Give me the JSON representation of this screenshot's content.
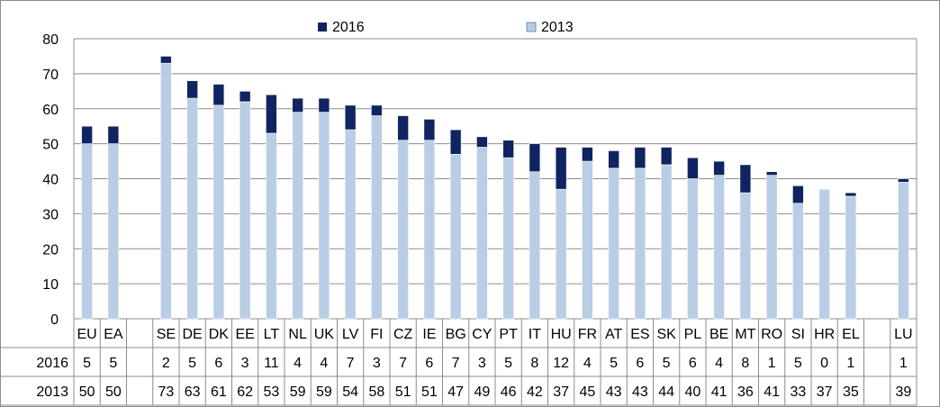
{
  "chart_data": {
    "type": "bar",
    "stacked": true,
    "ylim": [
      0,
      80
    ],
    "yticks": [
      0,
      10,
      20,
      30,
      40,
      50,
      60,
      70,
      80
    ],
    "grid": true,
    "legend_position": "top",
    "categories": [
      "EU",
      "EA",
      "",
      "SE",
      "DE",
      "DK",
      "EE",
      "LT",
      "NL",
      "UK",
      "LV",
      "FI",
      "CZ",
      "IE",
      "BG",
      "CY",
      "PT",
      "IT",
      "HU",
      "FR",
      "AT",
      "ES",
      "SK",
      "PL",
      "BE",
      "MT",
      "RO",
      "SI",
      "HR",
      "EL",
      "",
      "LU"
    ],
    "series": [
      {
        "name": "2013",
        "color": "#b9cde5",
        "values": [
          50,
          50,
          null,
          73,
          63,
          61,
          62,
          53,
          59,
          59,
          54,
          58,
          51,
          51,
          47,
          49,
          46,
          42,
          37,
          45,
          43,
          43,
          44,
          40,
          41,
          36,
          41,
          33,
          37,
          35,
          null,
          39
        ]
      },
      {
        "name": "2016",
        "color": "#0f2460",
        "values": [
          5,
          5,
          null,
          2,
          5,
          6,
          3,
          11,
          4,
          4,
          7,
          3,
          7,
          6,
          7,
          3,
          5,
          8,
          12,
          4,
          5,
          6,
          5,
          6,
          4,
          8,
          1,
          5,
          0,
          1,
          null,
          1
        ]
      }
    ],
    "table_rows": [
      {
        "label": "2016",
        "values": [
          "5",
          "5",
          "",
          "2",
          "5",
          "6",
          "3",
          "11",
          "4",
          "4",
          "7",
          "3",
          "7",
          "6",
          "7",
          "3",
          "5",
          "8",
          "12",
          "4",
          "5",
          "6",
          "5",
          "6",
          "4",
          "8",
          "1",
          "5",
          "0",
          "1",
          "",
          "1"
        ]
      },
      {
        "label": "2013",
        "values": [
          "50",
          "50",
          "",
          "73",
          "63",
          "61",
          "62",
          "53",
          "59",
          "59",
          "54",
          "58",
          "51",
          "51",
          "47",
          "49",
          "46",
          "42",
          "37",
          "45",
          "43",
          "43",
          "44",
          "40",
          "41",
          "36",
          "41",
          "33",
          "37",
          "35",
          "",
          "39"
        ]
      }
    ]
  }
}
